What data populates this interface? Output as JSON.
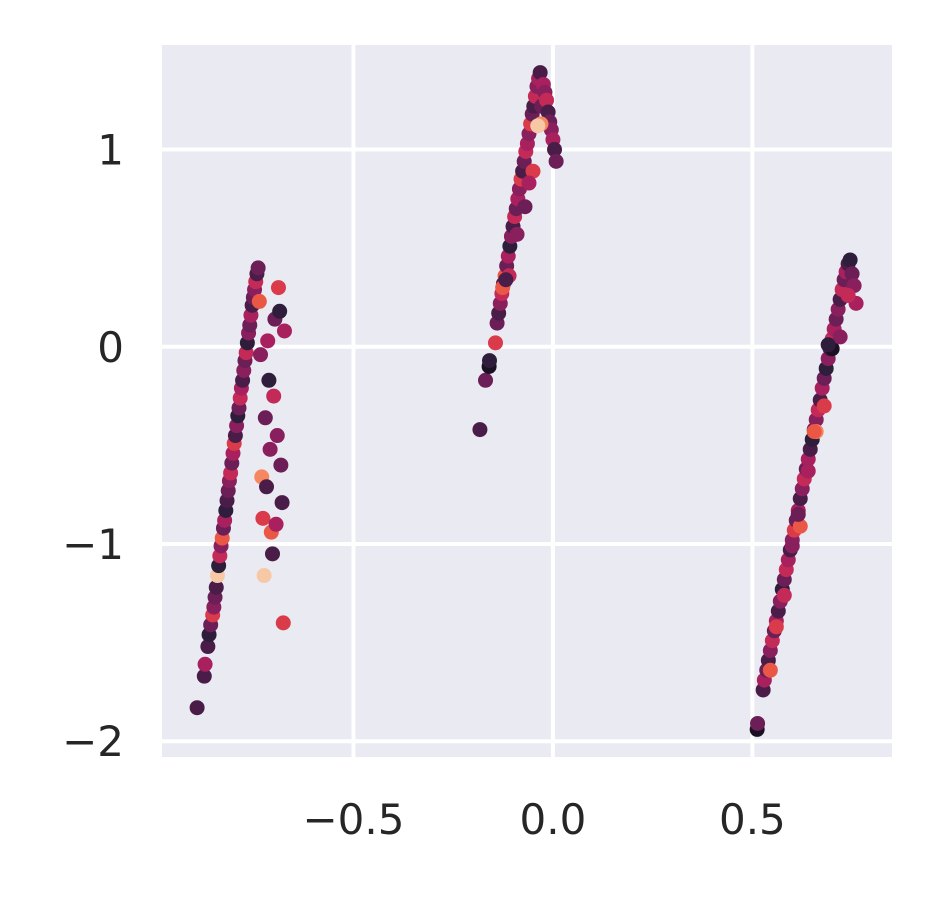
{
  "chart_data": {
    "type": "scatter",
    "title": "",
    "xlabel": "",
    "ylabel": "",
    "xlim": [
      -0.98,
      0.85
    ],
    "ylim": [
      -2.08,
      1.53
    ],
    "grid": true,
    "background": "#EAEAF2",
    "grid_color": "#FFFFFF",
    "x_ticks": [
      {
        "value": -0.5,
        "label": "−0.5"
      },
      {
        "value": 0.0,
        "label": "0.0"
      },
      {
        "value": 0.5,
        "label": "0.5"
      }
    ],
    "y_ticks": [
      {
        "value": -2,
        "label": "−2"
      },
      {
        "value": -1,
        "label": "−1"
      },
      {
        "value": 0,
        "label": "0"
      },
      {
        "value": 1,
        "label": "1"
      }
    ],
    "palette": [
      "#2E1E3C",
      "#4A1D48",
      "#6B1F56",
      "#8A1F5E",
      "#A8215E",
      "#C42A58",
      "#DA3B4B",
      "#EA5845",
      "#F58860",
      "#F7C8A6",
      "#1B1024"
    ],
    "clusters": [
      {
        "x": [
          -0.892,
          -0.874,
          -0.872,
          -0.865,
          -0.862,
          -0.858,
          -0.853,
          -0.85,
          -0.847,
          -0.844,
          -0.841,
          -0.838,
          -0.835,
          -0.832,
          -0.829,
          -0.826,
          -0.823,
          -0.82,
          -0.817,
          -0.814,
          -0.811,
          -0.808,
          -0.805,
          -0.802,
          -0.799,
          -0.796,
          -0.793,
          -0.79,
          -0.787,
          -0.784,
          -0.781,
          -0.778,
          -0.775,
          -0.772,
          -0.769,
          -0.766,
          -0.763,
          -0.76,
          -0.757,
          -0.754,
          -0.751,
          -0.748,
          -0.745,
          -0.742,
          -0.739,
          -0.736,
          -0.733,
          -0.73,
          -0.727,
          -0.724,
          -0.721,
          -0.718,
          -0.715,
          -0.712,
          -0.709,
          -0.706,
          -0.703,
          -0.7,
          -0.697,
          -0.694,
          -0.691,
          -0.688,
          -0.685,
          -0.682,
          -0.679,
          -0.676,
          -0.673
        ],
        "y": [
          -1.83,
          -1.67,
          -1.61,
          -1.52,
          -1.46,
          -1.41,
          -1.36,
          -1.32,
          -1.27,
          -1.22,
          -1.16,
          -1.11,
          -1.06,
          -1.01,
          -0.97,
          -0.92,
          -0.88,
          -0.83,
          -0.78,
          -0.73,
          -0.68,
          -0.64,
          -0.59,
          -0.54,
          -0.49,
          -0.45,
          -0.4,
          -0.35,
          -0.31,
          -0.26,
          -0.21,
          -0.17,
          -0.12,
          -0.07,
          -0.03,
          0.02,
          0.07,
          0.11,
          0.16,
          0.21,
          0.25,
          0.29,
          0.33,
          0.37,
          0.4,
          0.23,
          -0.04,
          -0.66,
          -0.87,
          -1.16,
          -0.36,
          -0.71,
          0.03,
          -0.17,
          -0.52,
          -0.94,
          -1.05,
          -0.25,
          0.14,
          -0.9,
          -0.45,
          0.3,
          0.18,
          -0.6,
          -0.79,
          -1.4,
          0.08
        ],
        "c": [
          1,
          1,
          4,
          1,
          0,
          2,
          6,
          3,
          2,
          1,
          9,
          0,
          5,
          3,
          7,
          2,
          4,
          0,
          1,
          2,
          3,
          5,
          2,
          4,
          6,
          1,
          3,
          0,
          2,
          5,
          4,
          1,
          3,
          2,
          5,
          0,
          3,
          2,
          4,
          1,
          2,
          3,
          5,
          1,
          2,
          7,
          3,
          8,
          6,
          9,
          2,
          1,
          4,
          0,
          3,
          7,
          1,
          5,
          2,
          4,
          3,
          6,
          0,
          2,
          1,
          6,
          4
        ]
      },
      {
        "x": [
          -0.183,
          -0.169,
          -0.16,
          -0.159,
          -0.144,
          -0.14,
          -0.136,
          -0.132,
          -0.128,
          -0.124,
          -0.12,
          -0.116,
          -0.112,
          -0.108,
          -0.104,
          -0.1,
          -0.096,
          -0.092,
          -0.088,
          -0.084,
          -0.08,
          -0.076,
          -0.072,
          -0.068,
          -0.064,
          -0.06,
          -0.056,
          -0.052,
          -0.048,
          -0.044,
          -0.04,
          -0.036,
          -0.032,
          -0.028,
          -0.024,
          -0.02,
          -0.016,
          -0.012,
          -0.008,
          -0.004,
          0.0,
          0.004,
          0.008,
          -0.126,
          -0.11,
          -0.09,
          -0.07,
          -0.05,
          -0.03,
          -0.038,
          -0.06,
          -0.118
        ],
        "y": [
          -0.42,
          -0.17,
          -0.1,
          -0.07,
          0.02,
          0.12,
          0.17,
          0.22,
          0.27,
          0.32,
          0.36,
          0.41,
          0.46,
          0.51,
          0.56,
          0.61,
          0.66,
          0.7,
          0.75,
          0.8,
          0.85,
          0.89,
          0.94,
          0.99,
          1.03,
          1.08,
          1.13,
          1.18,
          1.22,
          1.27,
          1.32,
          1.36,
          1.39,
          1.22,
          1.33,
          1.29,
          1.25,
          1.19,
          1.14,
          1.1,
          1.05,
          1.0,
          0.94,
          0.3,
          0.36,
          0.57,
          0.71,
          0.89,
          1.13,
          1.12,
          0.83,
          0.34
        ],
        "c": [
          1,
          2,
          10,
          0,
          6,
          2,
          1,
          3,
          5,
          1,
          7,
          2,
          4,
          0,
          3,
          1,
          5,
          2,
          4,
          3,
          6,
          1,
          2,
          5,
          4,
          3,
          6,
          2,
          1,
          5,
          3,
          4,
          1,
          2,
          4,
          3,
          5,
          1,
          2,
          3,
          4,
          1,
          2,
          7,
          5,
          3,
          2,
          6,
          8,
          9,
          4,
          1
        ]
      },
      {
        "x": [
          0.512,
          0.513,
          0.527,
          0.53,
          0.536,
          0.54,
          0.545,
          0.55,
          0.555,
          0.56,
          0.565,
          0.57,
          0.575,
          0.58,
          0.585,
          0.59,
          0.595,
          0.6,
          0.605,
          0.61,
          0.615,
          0.62,
          0.625,
          0.63,
          0.635,
          0.64,
          0.645,
          0.65,
          0.655,
          0.66,
          0.665,
          0.67,
          0.675,
          0.68,
          0.685,
          0.69,
          0.695,
          0.7,
          0.705,
          0.71,
          0.715,
          0.72,
          0.725,
          0.73,
          0.735,
          0.74,
          0.745,
          0.75,
          0.755,
          0.76,
          0.545,
          0.56,
          0.58,
          0.6,
          0.62,
          0.64,
          0.66,
          0.68,
          0.7,
          0.72,
          0.74,
          0.655,
          0.615,
          0.69
        ],
        "y": [
          -1.94,
          -1.91,
          -1.74,
          -1.69,
          -1.64,
          -1.59,
          -1.54,
          -1.49,
          -1.44,
          -1.39,
          -1.34,
          -1.29,
          -1.23,
          -1.18,
          -1.13,
          -1.08,
          -1.03,
          -0.98,
          -0.93,
          -0.88,
          -0.83,
          -0.77,
          -0.72,
          -0.67,
          -0.62,
          -0.57,
          -0.52,
          -0.47,
          -0.42,
          -0.37,
          -0.32,
          -0.27,
          -0.21,
          -0.16,
          -0.11,
          -0.06,
          -0.01,
          0.04,
          0.09,
          0.14,
          0.19,
          0.24,
          0.29,
          0.34,
          0.38,
          0.42,
          0.44,
          0.37,
          0.31,
          0.22,
          -1.64,
          -1.42,
          -1.26,
          -1.01,
          -0.91,
          -0.63,
          -0.43,
          -0.3,
          -0.01,
          0.05,
          0.26,
          -0.43,
          -0.85,
          0.01
        ],
        "c": [
          10,
          2,
          1,
          4,
          2,
          1,
          3,
          5,
          2,
          4,
          1,
          3,
          0,
          2,
          5,
          4,
          1,
          3,
          6,
          2,
          4,
          1,
          3,
          5,
          2,
          4,
          1,
          0,
          2,
          3,
          5,
          1,
          4,
          2,
          0,
          3,
          1,
          5,
          4,
          2,
          3,
          1,
          5,
          2,
          4,
          1,
          0,
          2,
          3,
          4,
          7,
          6,
          5,
          3,
          7,
          4,
          8,
          6,
          10,
          3,
          5,
          7,
          2,
          0
        ]
      }
    ]
  }
}
